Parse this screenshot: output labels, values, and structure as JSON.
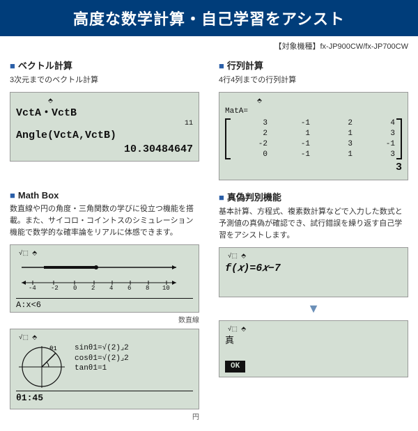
{
  "header": "高度な数学計算・自己学習をアシスト",
  "models": "【対象機種】fx-JP900CW/fx-JP700CW",
  "vector": {
    "title": "ベクトル計算",
    "sub": "3次元までのベクトル計算",
    "lcd_top": "⬘",
    "line1": "VctA・VctB",
    "exp": "11",
    "line2": "Angle(VctA,VctB)",
    "result": "10.30484647"
  },
  "matrix": {
    "title": "行列計算",
    "sub": "4行4列までの行列計算",
    "lcd_top": "⬘",
    "label": "MatA=",
    "rows": [
      [
        "3",
        "-1",
        "2",
        "4"
      ],
      [
        "2",
        "1",
        "1",
        "3"
      ],
      [
        "-2",
        "-1",
        "3",
        "-1"
      ],
      [
        "0",
        "-1",
        "1",
        "3"
      ]
    ],
    "corner": "3"
  },
  "mathbox": {
    "title": "Math Box",
    "sub": "数直線や円の角度・三角関数の学びに役立つ機能を搭載。また、サイコロ・コイントスのシミュレーション機能で数学的な確率論をリアルに体感できます。",
    "numline": {
      "lcd_top": "√⬚ ⬘",
      "expr": "A:x<6",
      "min": -4,
      "max": 10,
      "caption": "数直線"
    },
    "circle": {
      "lcd_top": "√⬚ ⬘",
      "thetas": "θ1",
      "l1": "sinθ1=√(2)⌟2",
      "l2": "cosθ1=√(2)⌟2",
      "l3": "tanθ1=1",
      "bot": "θ1:45",
      "caption": "円"
    }
  },
  "truth": {
    "title": "真偽判別機能",
    "sub": "基本計算、方程式、複素数計算などで入力した数式と予測値の真偽が確認でき、試行錯誤を繰り返す自己学習をアシストします。",
    "lcd1": {
      "top": "√⬚ ⬘",
      "expr": "f(𝑥)=6𝑥−7"
    },
    "lcd2": {
      "top": "√⬚ ⬘",
      "result": "真",
      "ok": "OK"
    }
  },
  "colors": {
    "header_bg": "#003d7a",
    "accent": "#2b5fa8",
    "lcd_bg": "#d4dfd4"
  }
}
